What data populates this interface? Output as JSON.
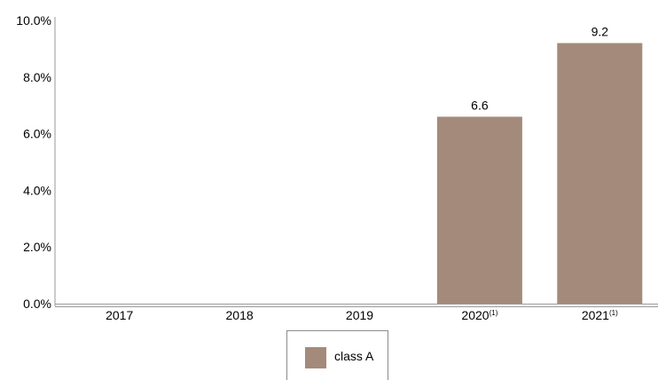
{
  "chart_data": {
    "type": "bar",
    "categories": [
      "2017",
      "2018",
      "2019",
      "2020",
      "2021"
    ],
    "category_superscripts": [
      "",
      "",
      "",
      "(1)",
      "(1)"
    ],
    "series": [
      {
        "name": "class A",
        "values": [
          null,
          null,
          null,
          6.6,
          9.2
        ],
        "color": "#a48a7b"
      }
    ],
    "data_labels": [
      "",
      "",
      "",
      "6.6",
      "9.2"
    ],
    "ylim": [
      0,
      10
    ],
    "y_ticks": [
      0,
      2,
      4,
      6,
      8,
      10
    ],
    "y_tick_labels": [
      "0.0%",
      "2.0%",
      "4.0%",
      "6.0%",
      "8.0%",
      "10.0%"
    ],
    "title": "",
    "xlabel": "",
    "ylabel": "",
    "grid": false,
    "legend_position": "bottom-center"
  }
}
